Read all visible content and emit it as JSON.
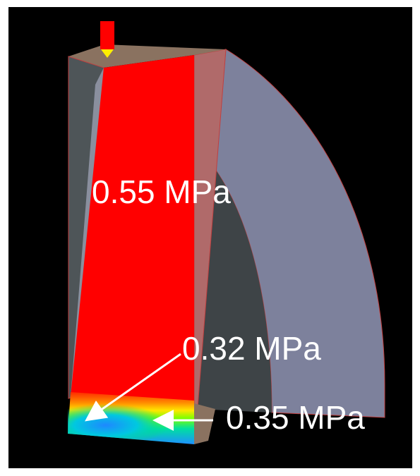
{
  "annotations": [
    "0.55 MPa",
    "0.32 MPa",
    "0.35 MPa"
  ]
}
